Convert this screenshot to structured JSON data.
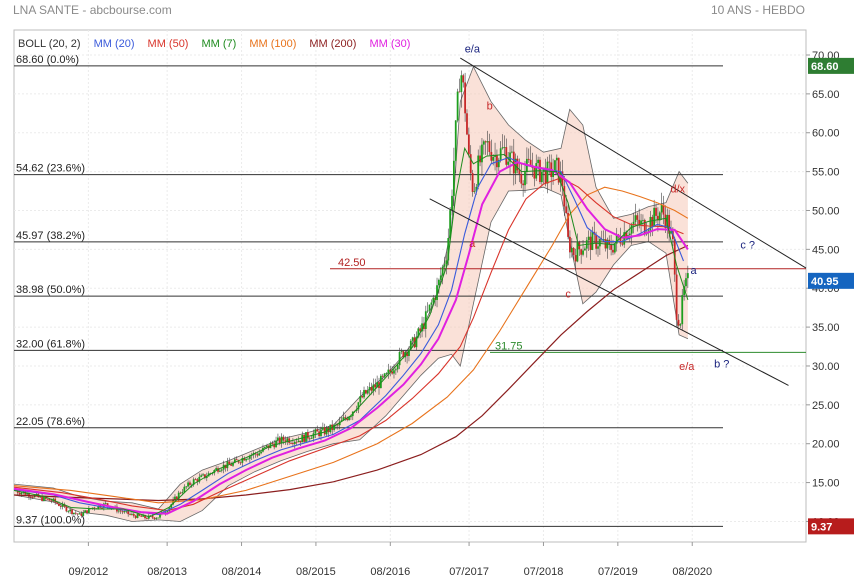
{
  "header": {
    "title": "LNA SANTE - abcbourse.com",
    "period": "10 ANS - HEBDO"
  },
  "legend": [
    {
      "label": "BOLL (20, 2)",
      "color": "#333333"
    },
    {
      "label": "MM (20)",
      "color": "#3b5bdb"
    },
    {
      "label": "MM (50)",
      "color": "#d9342b"
    },
    {
      "label": "MM (7)",
      "color": "#1e8b1e"
    },
    {
      "label": "MM (100)",
      "color": "#e8731c"
    },
    {
      "label": "MM (200)",
      "color": "#8b1e1e"
    },
    {
      "label": "MM (30)",
      "color": "#e020e0"
    }
  ],
  "chart_data": {
    "type": "line",
    "ylim": [
      8,
      70
    ],
    "yticks": [
      10,
      15,
      20,
      25,
      30,
      35,
      40,
      45,
      50,
      55,
      60,
      65,
      70
    ],
    "ytick_labels": [
      "10.00",
      "15.00",
      "20.00",
      "25.00",
      "30.00",
      "35.00",
      "40.00",
      "45.00",
      "50.00",
      "55.00",
      "60.00",
      "65.00",
      "70.00"
    ],
    "xlim": [
      2011.85,
      2020.9
    ],
    "xticks": [
      2012.7,
      2013.6,
      2014.45,
      2015.3,
      2016.15,
      2017.05,
      2017.9,
      2018.75,
      2019.6
    ],
    "xtick_labels": [
      "09/2012",
      "08/2013",
      "08/2014",
      "08/2015",
      "08/2016",
      "07/2017",
      "07/2018",
      "07/2019",
      "08/2020"
    ],
    "fib_levels": [
      {
        "value": 68.6,
        "label": "68.60 (0.0%)"
      },
      {
        "value": 54.62,
        "label": "54.62 (23.6%)"
      },
      {
        "value": 45.97,
        "label": "45.97 (38.2%)"
      },
      {
        "value": 38.98,
        "label": "38.98 (50.0%)"
      },
      {
        "value": 32.0,
        "label": "32.00 (61.8%)"
      },
      {
        "value": 22.05,
        "label": "22.05 (78.6%)"
      },
      {
        "value": 9.37,
        "label": "9.37 (100.0%)"
      }
    ],
    "levels": [
      {
        "value": 42.5,
        "label": "42.50",
        "color": "#b22222"
      },
      {
        "value": 31.75,
        "label": "31.75",
        "color": "#2e8b2e"
      }
    ],
    "price_badges": [
      {
        "value": 68.6,
        "label": "68.60",
        "color": "#2e7d32"
      },
      {
        "value": 40.95,
        "label": "40.95",
        "color": "#1565c0"
      },
      {
        "value": 9.37,
        "label": "9.37",
        "color": "#b71c1c"
      }
    ],
    "wave_labels": [
      {
        "text": "e/a",
        "x": 2017.0,
        "y": 70.3,
        "color": "#1a237e",
        "size": 17
      },
      {
        "text": "b",
        "x": 2017.25,
        "y": 63.0,
        "color": "#c62828",
        "size": 14
      },
      {
        "text": "a",
        "x": 2017.05,
        "y": 45.3,
        "color": "#c62828",
        "size": 14
      },
      {
        "text": "c",
        "x": 2018.15,
        "y": 38.8,
        "color": "#c62828",
        "size": 14
      },
      {
        "text": "d/x",
        "x": 2019.35,
        "y": 52.3,
        "color": "#c62828",
        "size": 14
      },
      {
        "text": "a",
        "x": 2019.58,
        "y": 41.8,
        "color": "#1a237e",
        "size": 11
      },
      {
        "text": "c ?",
        "x": 2020.15,
        "y": 45.1,
        "color": "#1a237e",
        "size": 11
      },
      {
        "text": "b ?",
        "x": 2019.85,
        "y": 29.8,
        "color": "#1a237e",
        "size": 11
      },
      {
        "text": "e/a",
        "x": 2019.45,
        "y": 29.5,
        "color": "#c62828",
        "size": 14
      }
    ],
    "trendlines": [
      {
        "from": [
          2016.95,
          69.6
        ],
        "to": [
          2020.9,
          42.6
        ]
      },
      {
        "from": [
          2016.6,
          51.5
        ],
        "to": [
          2020.7,
          27.5
        ]
      }
    ],
    "close": [
      [
        2011.85,
        14.0
      ],
      [
        2012.0,
        13.6
      ],
      [
        2012.15,
        13.0
      ],
      [
        2012.3,
        12.6
      ],
      [
        2012.45,
        11.6
      ],
      [
        2012.6,
        10.8
      ],
      [
        2012.75,
        11.8
      ],
      [
        2012.9,
        12.2
      ],
      [
        2013.05,
        11.4
      ],
      [
        2013.2,
        10.8
      ],
      [
        2013.35,
        10.5
      ],
      [
        2013.5,
        10.6
      ],
      [
        2013.62,
        11.8
      ],
      [
        2013.75,
        13.8
      ],
      [
        2013.9,
        15.2
      ],
      [
        2014.05,
        15.9
      ],
      [
        2014.2,
        17.0
      ],
      [
        2014.35,
        17.4
      ],
      [
        2014.5,
        18.4
      ],
      [
        2014.65,
        18.8
      ],
      [
        2014.8,
        20.0
      ],
      [
        2014.95,
        20.6
      ],
      [
        2015.1,
        20.5
      ],
      [
        2015.25,
        21.2
      ],
      [
        2015.4,
        21.6
      ],
      [
        2015.55,
        22.3
      ],
      [
        2015.7,
        24.0
      ],
      [
        2015.85,
        26.3
      ],
      [
        2016.0,
        27.6
      ],
      [
        2016.1,
        28.5
      ],
      [
        2016.2,
        30.2
      ],
      [
        2016.3,
        31.8
      ],
      [
        2016.4,
        32.7
      ],
      [
        2016.5,
        34.6
      ],
      [
        2016.6,
        37.4
      ],
      [
        2016.7,
        40.4
      ],
      [
        2016.8,
        45.0
      ],
      [
        2016.85,
        52.0
      ],
      [
        2016.9,
        60.5
      ],
      [
        2016.95,
        68.6
      ],
      [
        2017.0,
        64.0
      ],
      [
        2017.05,
        56.0
      ],
      [
        2017.1,
        52.5
      ],
      [
        2017.15,
        55.5
      ],
      [
        2017.25,
        58.5
      ],
      [
        2017.35,
        57.0
      ],
      [
        2017.45,
        57.8
      ],
      [
        2017.55,
        56.2
      ],
      [
        2017.65,
        54.5
      ],
      [
        2017.75,
        55.8
      ],
      [
        2017.85,
        55.0
      ],
      [
        2017.95,
        54.8
      ],
      [
        2018.05,
        55.5
      ],
      [
        2018.12,
        53.5
      ],
      [
        2018.18,
        46.0
      ],
      [
        2018.25,
        44.5
      ],
      [
        2018.35,
        45.5
      ],
      [
        2018.45,
        46.0
      ],
      [
        2018.55,
        46.0
      ],
      [
        2018.65,
        45.0
      ],
      [
        2018.75,
        46.2
      ],
      [
        2018.85,
        47.5
      ],
      [
        2018.95,
        48.5
      ],
      [
        2019.05,
        48.0
      ],
      [
        2019.15,
        49.0
      ],
      [
        2019.25,
        50.0
      ],
      [
        2019.32,
        48.5
      ],
      [
        2019.38,
        45.5
      ],
      [
        2019.42,
        37.0
      ],
      [
        2019.46,
        35.5
      ],
      [
        2019.5,
        39.5
      ],
      [
        2019.55,
        40.95
      ]
    ],
    "ma7": [
      [
        2011.85,
        14.0
      ],
      [
        2012.2,
        13.2
      ],
      [
        2012.5,
        11.8
      ],
      [
        2012.8,
        11.6
      ],
      [
        2013.1,
        11.6
      ],
      [
        2013.4,
        10.6
      ],
      [
        2013.62,
        11.8
      ],
      [
        2013.9,
        14.8
      ],
      [
        2014.2,
        16.8
      ],
      [
        2014.5,
        18.2
      ],
      [
        2014.8,
        19.8
      ],
      [
        2015.1,
        20.6
      ],
      [
        2015.4,
        21.5
      ],
      [
        2015.7,
        23.6
      ],
      [
        2016.0,
        27.3
      ],
      [
        2016.2,
        29.8
      ],
      [
        2016.4,
        32.4
      ],
      [
        2016.6,
        36.5
      ],
      [
        2016.8,
        43.0
      ],
      [
        2016.9,
        52.0
      ],
      [
        2017.0,
        58.0
      ],
      [
        2017.1,
        56.0
      ],
      [
        2017.25,
        57.0
      ],
      [
        2017.45,
        57.2
      ],
      [
        2017.65,
        55.0
      ],
      [
        2017.85,
        55.1
      ],
      [
        2018.05,
        55.0
      ],
      [
        2018.18,
        51.0
      ],
      [
        2018.3,
        45.5
      ],
      [
        2018.5,
        45.8
      ],
      [
        2018.7,
        45.6
      ],
      [
        2018.9,
        47.8
      ],
      [
        2019.1,
        48.6
      ],
      [
        2019.3,
        49.0
      ],
      [
        2019.42,
        43.0
      ],
      [
        2019.55,
        38.5
      ]
    ],
    "ma20": [
      [
        2011.85,
        14.1
      ],
      [
        2012.3,
        13.4
      ],
      [
        2012.6,
        12.4
      ],
      [
        2012.9,
        11.8
      ],
      [
        2013.2,
        11.3
      ],
      [
        2013.5,
        10.9
      ],
      [
        2013.75,
        12.2
      ],
      [
        2014.0,
        14.0
      ],
      [
        2014.3,
        16.2
      ],
      [
        2014.6,
        17.8
      ],
      [
        2014.9,
        19.2
      ],
      [
        2015.2,
        20.2
      ],
      [
        2015.5,
        21.2
      ],
      [
        2015.8,
        23.0
      ],
      [
        2016.1,
        26.2
      ],
      [
        2016.3,
        28.8
      ],
      [
        2016.5,
        31.6
      ],
      [
        2016.7,
        35.3
      ],
      [
        2016.85,
        39.8
      ],
      [
        2017.0,
        47.0
      ],
      [
        2017.15,
        53.0
      ],
      [
        2017.3,
        56.0
      ],
      [
        2017.5,
        56.8
      ],
      [
        2017.7,
        55.8
      ],
      [
        2017.9,
        55.3
      ],
      [
        2018.1,
        55.0
      ],
      [
        2018.25,
        51.5
      ],
      [
        2018.4,
        47.8
      ],
      [
        2018.6,
        46.0
      ],
      [
        2018.8,
        46.0
      ],
      [
        2019.0,
        47.0
      ],
      [
        2019.2,
        48.2
      ],
      [
        2019.35,
        47.8
      ],
      [
        2019.5,
        43.5
      ]
    ],
    "ma30": [
      [
        2011.85,
        14.2
      ],
      [
        2012.3,
        13.5
      ],
      [
        2012.7,
        12.5
      ],
      [
        2013.0,
        11.8
      ],
      [
        2013.3,
        11.2
      ],
      [
        2013.6,
        11.0
      ],
      [
        2013.9,
        12.6
      ],
      [
        2014.2,
        14.8
      ],
      [
        2014.5,
        16.6
      ],
      [
        2014.8,
        18.2
      ],
      [
        2015.1,
        19.4
      ],
      [
        2015.4,
        20.4
      ],
      [
        2015.7,
        22.0
      ],
      [
        2016.0,
        24.6
      ],
      [
        2016.3,
        27.6
      ],
      [
        2016.5,
        30.2
      ],
      [
        2016.7,
        33.5
      ],
      [
        2016.9,
        38.5
      ],
      [
        2017.05,
        44.5
      ],
      [
        2017.2,
        50.8
      ],
      [
        2017.4,
        55.0
      ],
      [
        2017.6,
        56.2
      ],
      [
        2017.8,
        55.6
      ],
      [
        2018.0,
        55.2
      ],
      [
        2018.2,
        53.6
      ],
      [
        2018.4,
        50.2
      ],
      [
        2018.6,
        47.6
      ],
      [
        2018.8,
        46.5
      ],
      [
        2019.0,
        46.8
      ],
      [
        2019.2,
        47.6
      ],
      [
        2019.4,
        47.5
      ],
      [
        2019.55,
        45.0
      ]
    ],
    "ma50": [
      [
        2011.85,
        14.4
      ],
      [
        2012.4,
        13.7
      ],
      [
        2012.8,
        12.9
      ],
      [
        2013.2,
        12.0
      ],
      [
        2013.6,
        11.4
      ],
      [
        2013.9,
        12.2
      ],
      [
        2014.2,
        13.8
      ],
      [
        2014.6,
        15.8
      ],
      [
        2015.0,
        17.8
      ],
      [
        2015.4,
        19.4
      ],
      [
        2015.8,
        21.0
      ],
      [
        2016.1,
        23.0
      ],
      [
        2016.4,
        25.8
      ],
      [
        2016.7,
        29.0
      ],
      [
        2016.95,
        32.5
      ],
      [
        2017.1,
        36.2
      ],
      [
        2017.3,
        42.0
      ],
      [
        2017.5,
        47.5
      ],
      [
        2017.7,
        51.5
      ],
      [
        2017.9,
        53.4
      ],
      [
        2018.1,
        54.2
      ],
      [
        2018.3,
        53.0
      ],
      [
        2018.5,
        51.0
      ],
      [
        2018.7,
        49.2
      ],
      [
        2018.9,
        48.2
      ],
      [
        2019.1,
        48.0
      ],
      [
        2019.3,
        47.9
      ],
      [
        2019.5,
        47.0
      ]
    ],
    "ma100": [
      [
        2011.85,
        14.6
      ],
      [
        2012.5,
        14.0
      ],
      [
        2013.0,
        13.2
      ],
      [
        2013.5,
        12.4
      ],
      [
        2014.0,
        12.8
      ],
      [
        2014.5,
        14.0
      ],
      [
        2015.0,
        15.8
      ],
      [
        2015.5,
        17.6
      ],
      [
        2016.0,
        20.0
      ],
      [
        2016.4,
        22.6
      ],
      [
        2016.8,
        26.0
      ],
      [
        2017.1,
        29.5
      ],
      [
        2017.4,
        34.5
      ],
      [
        2017.7,
        40.0
      ],
      [
        2018.0,
        45.5
      ],
      [
        2018.2,
        49.5
      ],
      [
        2018.4,
        52.0
      ],
      [
        2018.6,
        53.0
      ],
      [
        2018.8,
        52.5
      ],
      [
        2019.0,
        51.8
      ],
      [
        2019.2,
        51.0
      ],
      [
        2019.4,
        50.0
      ],
      [
        2019.55,
        49.0
      ]
    ],
    "ma200": [
      [
        2011.85,
        13.4
      ],
      [
        2012.5,
        13.1
      ],
      [
        2013.0,
        12.9
      ],
      [
        2013.5,
        12.7
      ],
      [
        2014.0,
        12.9
      ],
      [
        2014.5,
        13.4
      ],
      [
        2015.0,
        14.1
      ],
      [
        2015.5,
        15.1
      ],
      [
        2016.0,
        16.6
      ],
      [
        2016.5,
        18.6
      ],
      [
        2016.9,
        20.9
      ],
      [
        2017.2,
        23.6
      ],
      [
        2017.5,
        27.0
      ],
      [
        2017.8,
        30.5
      ],
      [
        2018.1,
        34.0
      ],
      [
        2018.4,
        37.0
      ],
      [
        2018.7,
        39.8
      ],
      [
        2019.0,
        42.0
      ],
      [
        2019.3,
        44.2
      ],
      [
        2019.55,
        45.5
      ]
    ],
    "boll_upper": [
      [
        2011.85,
        14.8
      ],
      [
        2012.3,
        14.3
      ],
      [
        2012.6,
        13.2
      ],
      [
        2012.9,
        12.6
      ],
      [
        2013.2,
        12.4
      ],
      [
        2013.5,
        11.6
      ],
      [
        2013.75,
        14.8
      ],
      [
        2014.0,
        16.6
      ],
      [
        2014.3,
        17.8
      ],
      [
        2014.6,
        19.2
      ],
      [
        2014.9,
        20.6
      ],
      [
        2015.2,
        21.4
      ],
      [
        2015.5,
        22.4
      ],
      [
        2015.8,
        26.0
      ],
      [
        2016.1,
        28.8
      ],
      [
        2016.3,
        31.4
      ],
      [
        2016.5,
        34.4
      ],
      [
        2016.7,
        39.5
      ],
      [
        2016.85,
        48.0
      ],
      [
        2016.95,
        64.0
      ],
      [
        2017.1,
        68.5
      ],
      [
        2017.3,
        64.0
      ],
      [
        2017.5,
        61.0
      ],
      [
        2017.7,
        59.0
      ],
      [
        2017.9,
        57.5
      ],
      [
        2018.1,
        58.0
      ],
      [
        2018.2,
        63.0
      ],
      [
        2018.35,
        61.0
      ],
      [
        2018.5,
        53.0
      ],
      [
        2018.7,
        49.0
      ],
      [
        2018.9,
        49.5
      ],
      [
        2019.1,
        50.5
      ],
      [
        2019.3,
        51.0
      ],
      [
        2019.45,
        55.0
      ],
      [
        2019.55,
        53.5
      ]
    ],
    "boll_lower": [
      [
        2011.85,
        13.4
      ],
      [
        2012.3,
        12.5
      ],
      [
        2012.6,
        11.2
      ],
      [
        2012.9,
        10.8
      ],
      [
        2013.2,
        10.0
      ],
      [
        2013.5,
        10.2
      ],
      [
        2013.75,
        10.0
      ],
      [
        2014.0,
        11.4
      ],
      [
        2014.3,
        14.6
      ],
      [
        2014.6,
        16.4
      ],
      [
        2014.9,
        17.8
      ],
      [
        2015.2,
        19.0
      ],
      [
        2015.5,
        20.0
      ],
      [
        2015.8,
        20.5
      ],
      [
        2016.1,
        23.6
      ],
      [
        2016.3,
        26.2
      ],
      [
        2016.5,
        28.8
      ],
      [
        2016.7,
        31.0
      ],
      [
        2016.85,
        31.5
      ],
      [
        2016.95,
        30.0
      ],
      [
        2017.1,
        38.0
      ],
      [
        2017.3,
        48.5
      ],
      [
        2017.5,
        52.5
      ],
      [
        2017.7,
        52.6
      ],
      [
        2017.9,
        53.0
      ],
      [
        2018.1,
        52.0
      ],
      [
        2018.2,
        46.0
      ],
      [
        2018.35,
        38.0
      ],
      [
        2018.5,
        39.5
      ],
      [
        2018.7,
        43.0
      ],
      [
        2018.9,
        45.5
      ],
      [
        2019.1,
        46.0
      ],
      [
        2019.3,
        44.5
      ],
      [
        2019.45,
        34.0
      ],
      [
        2019.55,
        33.5
      ]
    ]
  }
}
